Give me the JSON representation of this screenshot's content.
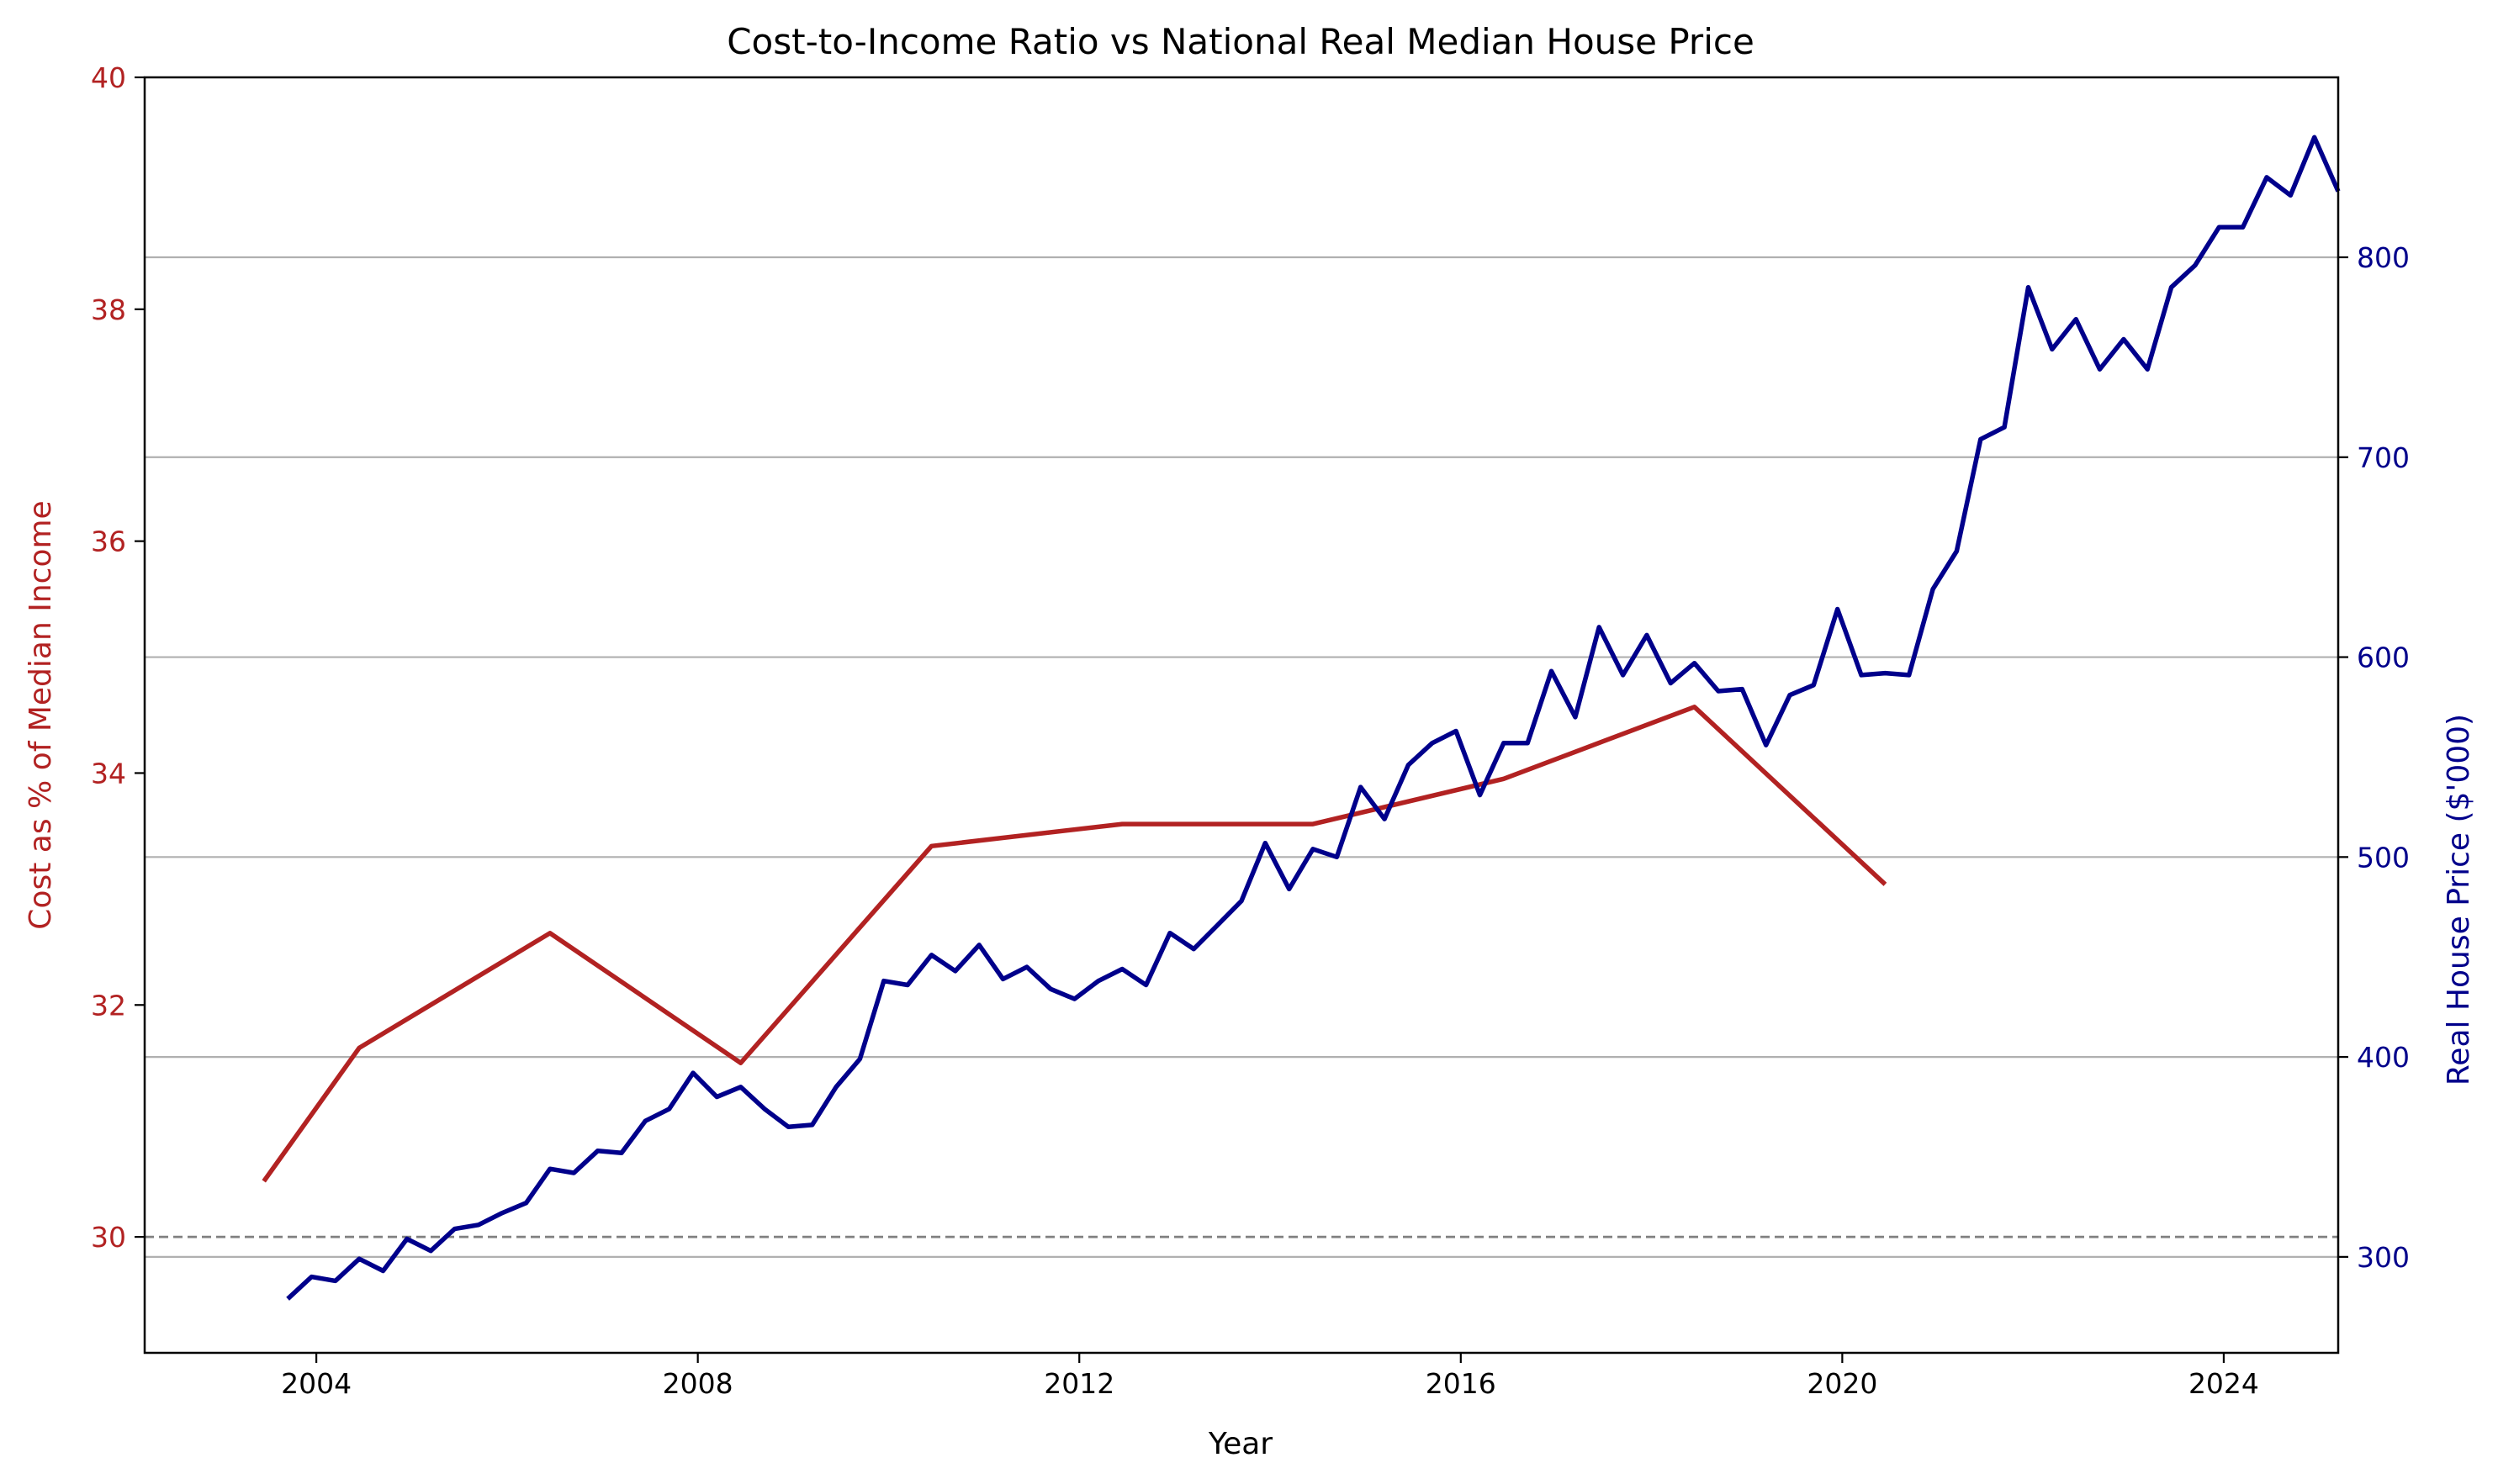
{
  "chart_data": {
    "type": "line",
    "title": "Cost-to-Income Ratio vs National Real Median House Price",
    "xlabel": "Year",
    "xlim": [
      2002.2,
      2025.2
    ],
    "xticks": [
      2004,
      2008,
      2012,
      2016,
      2020,
      2024
    ],
    "xtick_labels": [
      "2004",
      "2008",
      "2012",
      "2016",
      "2020",
      "2024"
    ],
    "grid": "horizontal lines at right-axis ticks",
    "y_left": {
      "label": "Cost as % of Median Income",
      "color": "#b22222",
      "ylim": [
        29,
        40
      ],
      "ticks": [
        30,
        32,
        34,
        36,
        38,
        40
      ],
      "tick_labels": [
        "30",
        "32",
        "34",
        "36",
        "38",
        "40"
      ],
      "reference_line": 30
    },
    "y_right": {
      "label": "Real House Price ($'000)",
      "color": "#00008b",
      "ylim": [
        252,
        890
      ],
      "ticks": [
        300,
        400,
        500,
        600,
        700,
        800
      ],
      "tick_labels": [
        "300",
        "400",
        "500",
        "600",
        "700",
        "800"
      ]
    },
    "series": [
      {
        "axis": "left",
        "color": "#b22222",
        "x": [
          2003.45,
          2004.45,
          2006.45,
          2008.45,
          2010.45,
          2012.45,
          2014.45,
          2016.45,
          2018.45,
          2020.45
        ],
        "y": [
          30.48,
          31.63,
          32.62,
          31.5,
          33.37,
          33.56,
          33.56,
          33.95,
          34.57,
          33.04
        ]
      },
      {
        "axis": "right",
        "color": "#00008b",
        "x": [
          2003.7,
          2003.95,
          2004.2,
          2004.45,
          2004.7,
          2004.95,
          2005.2,
          2005.45,
          2005.7,
          2005.95,
          2006.2,
          2006.45,
          2006.7,
          2006.95,
          2007.2,
          2007.45,
          2007.7,
          2007.95,
          2008.2,
          2008.45,
          2008.7,
          2008.95,
          2009.2,
          2009.45,
          2009.7,
          2009.95,
          2010.2,
          2010.45,
          2010.7,
          2010.95,
          2011.2,
          2011.45,
          2011.7,
          2011.95,
          2012.2,
          2012.45,
          2012.7,
          2012.95,
          2013.2,
          2013.45,
          2013.7,
          2013.95,
          2014.2,
          2014.45,
          2014.7,
          2014.95,
          2015.2,
          2015.45,
          2015.7,
          2015.95,
          2016.2,
          2016.45,
          2016.7,
          2016.95,
          2017.2,
          2017.45,
          2017.7,
          2017.95,
          2018.2,
          2018.45,
          2018.7,
          2018.95,
          2019.2,
          2019.45,
          2019.7,
          2019.95,
          2020.2,
          2020.45,
          2020.7,
          2020.95,
          2021.2,
          2021.45,
          2021.7,
          2021.95,
          2022.2,
          2022.45,
          2022.7,
          2022.95,
          2023.2,
          2023.45,
          2023.7,
          2023.95,
          2024.2,
          2024.45,
          2024.7,
          2024.95,
          2025.2
        ],
        "y": [
          279,
          290,
          288,
          299,
          293,
          309,
          303,
          314,
          316,
          322,
          327,
          344,
          342,
          353,
          352,
          368,
          374,
          392,
          380,
          385,
          374,
          365,
          366,
          385,
          399,
          438,
          436,
          451,
          443,
          456,
          439,
          445,
          434,
          429,
          438,
          444,
          436,
          462,
          454,
          466,
          478,
          507,
          484,
          504,
          500,
          535,
          519,
          546,
          557,
          563,
          531,
          557,
          557,
          593,
          570,
          615,
          591,
          611,
          587,
          597,
          583,
          584,
          556,
          581,
          586,
          624,
          591,
          592,
          591,
          634,
          653,
          709,
          715,
          785,
          754,
          769,
          744,
          759,
          744,
          785,
          796,
          815,
          815,
          840,
          831,
          860,
          833
        ]
      }
    ]
  }
}
